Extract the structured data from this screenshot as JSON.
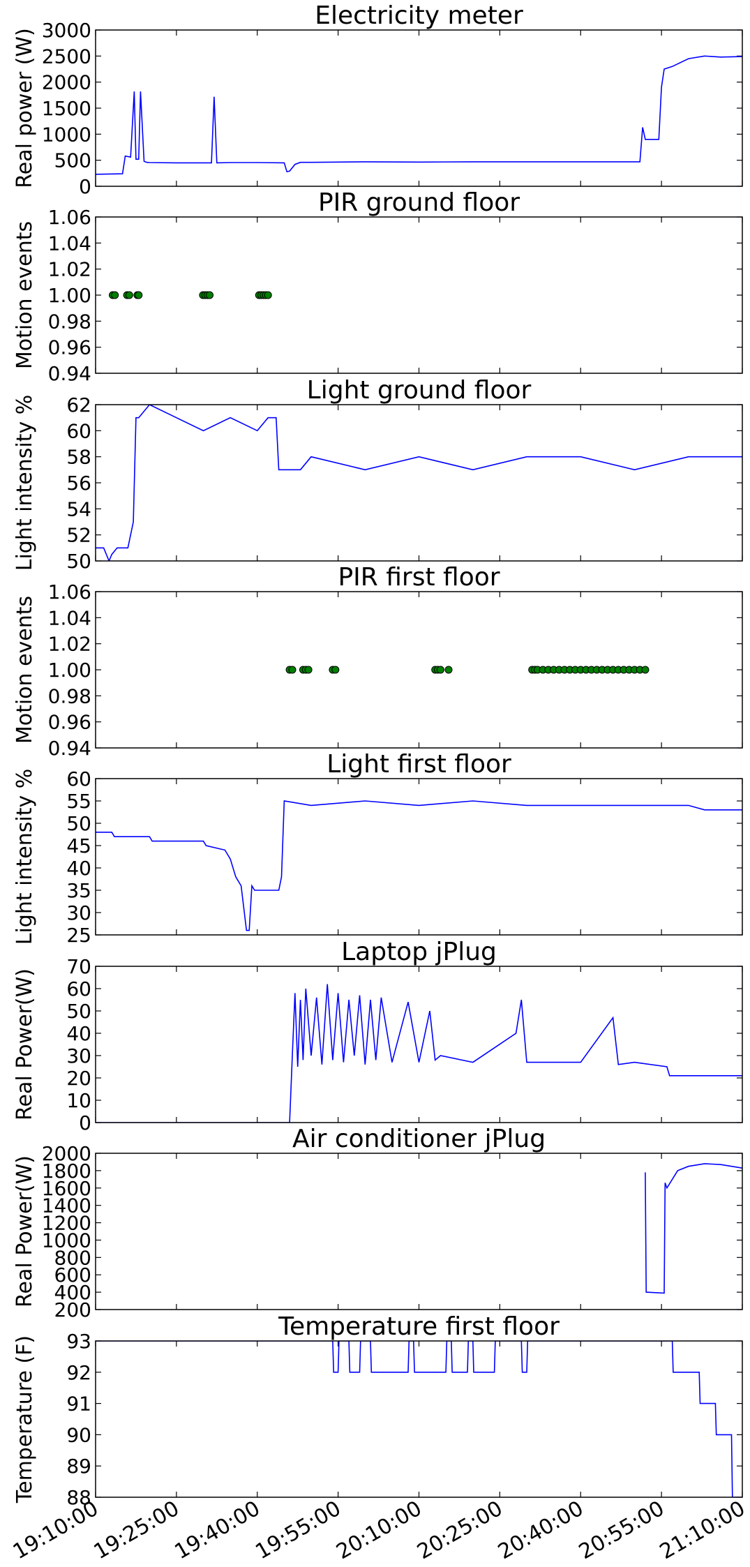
{
  "chart_data": [
    {
      "type": "line",
      "title": "Electricity meter",
      "ylabel": "Real power (W)",
      "xlim": [
        "19:10:00",
        "21:10:00"
      ],
      "ylim": [
        0,
        3000
      ],
      "yticks": [
        "0",
        "500",
        "1000",
        "1500",
        "2000",
        "2500",
        "3000"
      ],
      "color": "#0000ff",
      "grid": false,
      "series": [
        {
          "x": [
            "19:10:00",
            "19:15:00",
            "19:15:30",
            "19:16:30",
            "19:17:10",
            "19:17:30",
            "19:18:00",
            "19:18:20",
            "19:19:00",
            "19:19:30",
            "19:20:00",
            "19:25:00",
            "19:30:00",
            "19:31:30",
            "19:32:00",
            "19:32:30",
            "19:35:00",
            "19:40:00",
            "19:45:00",
            "19:45:30",
            "19:46:00",
            "19:47:00",
            "19:48:00",
            "19:50:00",
            "19:55:00",
            "20:00:00",
            "20:10:00",
            "20:20:00",
            "20:30:00",
            "20:40:00",
            "20:50:00",
            "20:51:00",
            "20:51:30",
            "20:52:00",
            "20:54:30",
            "20:55:00",
            "20:55:30",
            "20:57:00",
            "21:00:00",
            "21:03:00",
            "21:06:00",
            "21:10:00"
          ],
          "y": [
            230,
            240,
            580,
            560,
            1820,
            520,
            520,
            1820,
            480,
            460,
            455,
            450,
            450,
            450,
            1720,
            450,
            455,
            455,
            450,
            280,
            290,
            420,
            460,
            460,
            465,
            470,
            465,
            470,
            470,
            470,
            470,
            470,
            1130,
            900,
            900,
            1900,
            2250,
            2300,
            2450,
            2500,
            2480,
            2490
          ]
        }
      ]
    },
    {
      "type": "scatter",
      "title": "PIR ground floor",
      "ylabel": "Motion events",
      "xlim": [
        "19:10:00",
        "21:10:00"
      ],
      "ylim": [
        0.94,
        1.06
      ],
      "yticks": [
        "0.94",
        "0.96",
        "0.98",
        "1.00",
        "1.02",
        "1.04",
        "1.06"
      ],
      "color": "#008000",
      "grid": false,
      "series": [
        {
          "x": [
            "19:13:10",
            "19:13:35",
            "19:15:50",
            "19:16:15",
            "19:17:45",
            "19:18:00",
            "19:29:55",
            "19:30:20",
            "19:30:45",
            "19:31:10",
            "19:40:20",
            "19:40:45",
            "19:41:10",
            "19:41:35",
            "19:42:00"
          ],
          "y": [
            1,
            1,
            1,
            1,
            1,
            1,
            1,
            1,
            1,
            1,
            1,
            1,
            1,
            1,
            1
          ]
        }
      ]
    },
    {
      "type": "line",
      "title": "Light ground floor",
      "ylabel": "Light intensity %",
      "xlim": [
        "19:10:00",
        "21:10:00"
      ],
      "ylim": [
        50,
        62
      ],
      "yticks": [
        "50",
        "52",
        "54",
        "56",
        "58",
        "60",
        "62"
      ],
      "color": "#0000ff",
      "grid": false,
      "series": [
        {
          "x": [
            "19:10:00",
            "19:11:30",
            "19:12:30",
            "19:13:00",
            "19:14:00",
            "19:16:00",
            "19:17:00",
            "19:17:30",
            "19:18:00",
            "19:20:00",
            "19:25:00",
            "19:30:00",
            "19:35:00",
            "19:40:00",
            "19:42:00",
            "19:43:30",
            "19:44:00",
            "19:48:00",
            "19:50:00",
            "20:00:00",
            "20:10:00",
            "20:20:00",
            "20:30:00",
            "20:40:00",
            "20:50:00",
            "21:00:00",
            "21:10:00"
          ],
          "y": [
            51,
            51,
            50,
            50.5,
            51,
            51,
            53,
            61,
            61,
            62,
            61,
            60,
            61,
            60,
            61,
            61,
            57,
            57,
            58,
            57,
            58,
            57,
            58,
            58,
            57,
            58,
            58
          ]
        }
      ]
    },
    {
      "type": "scatter",
      "title": "PIR first floor",
      "ylabel": "Motion events",
      "xlim": [
        "19:10:00",
        "21:10:00"
      ],
      "ylim": [
        0.94,
        1.06
      ],
      "yticks": [
        "0.94",
        "0.96",
        "0.98",
        "1.00",
        "1.02",
        "1.04",
        "1.06"
      ],
      "color": "#008000",
      "grid": false,
      "series": [
        {
          "x": [
            "19:46:00",
            "19:46:30",
            "19:48:30",
            "19:49:00",
            "19:49:30",
            "19:54:00",
            "19:54:30",
            "20:13:00",
            "20:13:30",
            "20:14:00",
            "20:15:30",
            "20:31:00",
            "20:31:30",
            "20:32:00",
            "20:33:00",
            "20:34:00",
            "20:35:00",
            "20:36:00",
            "20:37:00",
            "20:38:00",
            "20:39:00",
            "20:40:00",
            "20:41:00",
            "20:42:00",
            "20:43:00",
            "20:44:00",
            "20:45:00",
            "20:46:00",
            "20:47:00",
            "20:48:00",
            "20:49:00",
            "20:50:00",
            "20:51:00",
            "20:52:00"
          ],
          "y": [
            1,
            1,
            1,
            1,
            1,
            1,
            1,
            1,
            1,
            1,
            1,
            1,
            1,
            1,
            1,
            1,
            1,
            1,
            1,
            1,
            1,
            1,
            1,
            1,
            1,
            1,
            1,
            1,
            1,
            1,
            1,
            1,
            1,
            1
          ]
        }
      ]
    },
    {
      "type": "line",
      "title": "Light first floor",
      "ylabel": "Light intensity %",
      "xlim": [
        "19:10:00",
        "21:10:00"
      ],
      "ylim": [
        25,
        60
      ],
      "yticks": [
        "25",
        "30",
        "35",
        "40",
        "45",
        "50",
        "55",
        "60"
      ],
      "color": "#0000ff",
      "grid": false,
      "series": [
        {
          "x": [
            "19:10:00",
            "19:13:00",
            "19:13:30",
            "19:20:00",
            "19:20:30",
            "19:30:00",
            "19:30:30",
            "19:34:00",
            "19:35:00",
            "19:36:00",
            "19:37:00",
            "19:38:00",
            "19:38:30",
            "19:39:00",
            "19:39:30",
            "19:40:00",
            "19:44:00",
            "19:44:30",
            "19:45:00",
            "19:50:00",
            "20:00:00",
            "20:10:00",
            "20:20:00",
            "20:30:00",
            "20:40:00",
            "20:50:00",
            "21:00:00",
            "21:03:00",
            "21:10:00"
          ],
          "y": [
            48,
            48,
            47,
            47,
            46,
            46,
            45,
            44,
            42,
            38,
            36,
            26,
            26,
            36,
            35,
            35,
            35,
            38,
            55,
            54,
            55,
            54,
            55,
            54,
            54,
            54,
            54,
            53,
            53
          ]
        }
      ]
    },
    {
      "type": "line",
      "title": "Laptop jPlug",
      "ylabel": "Real Power(W)",
      "xlim": [
        "19:10:00",
        "21:10:00"
      ],
      "ylim": [
        0,
        70
      ],
      "yticks": [
        "0",
        "10",
        "20",
        "30",
        "40",
        "50",
        "60",
        "70"
      ],
      "color": "#0000ff",
      "grid": false,
      "series": [
        {
          "x": [
            "19:10:00",
            "19:43:00",
            "19:46:00",
            "19:46:30",
            "19:47:00",
            "19:47:30",
            "19:48:00",
            "19:48:30",
            "19:49:00",
            "19:50:00",
            "19:51:00",
            "19:52:00",
            "19:53:00",
            "19:54:00",
            "19:55:00",
            "19:56:00",
            "19:57:00",
            "19:58:00",
            "19:59:00",
            "20:00:00",
            "20:01:00",
            "20:02:00",
            "20:03:00",
            "20:05:00",
            "20:08:00",
            "20:10:00",
            "20:12:00",
            "20:13:00",
            "20:14:00",
            "20:20:00",
            "20:28:00",
            "20:29:00",
            "20:30:00",
            "20:40:00",
            "20:46:00",
            "20:47:00",
            "20:50:00",
            "20:56:00",
            "20:56:30",
            "21:10:00"
          ],
          "y": [
            0,
            0,
            0,
            30,
            58,
            25,
            55,
            28,
            60,
            30,
            56,
            26,
            62,
            28,
            58,
            27,
            55,
            30,
            57,
            26,
            55,
            28,
            56,
            27,
            54,
            27,
            50,
            28,
            30,
            27,
            40,
            55,
            27,
            27,
            47,
            26,
            27,
            25,
            21,
            21
          ]
        }
      ]
    },
    {
      "type": "line",
      "title": "Air conditioner jPlug",
      "ylabel": "Real Power(W)",
      "xlim": [
        "19:10:00",
        "21:10:00"
      ],
      "ylim": [
        200,
        2000
      ],
      "yticks": [
        "200",
        "400",
        "600",
        "800",
        "1000",
        "1200",
        "1400",
        "1600",
        "1800",
        "2000"
      ],
      "color": "#0000ff",
      "grid": false,
      "series": [
        {
          "x": [
            "20:52:00",
            "20:52:10",
            "20:55:30",
            "20:55:40",
            "20:56:00",
            "20:58:00",
            "21:00:00",
            "21:03:00",
            "21:06:00",
            "21:10:00"
          ],
          "y": [
            1780,
            400,
            390,
            1660,
            1600,
            1800,
            1850,
            1880,
            1870,
            1830
          ]
        }
      ]
    },
    {
      "type": "line",
      "title": "Temperature first floor",
      "ylabel": "Temperature (F)",
      "xlim": [
        "19:10:00",
        "21:10:00"
      ],
      "ylim": [
        88,
        93
      ],
      "yticks": [
        "88",
        "89",
        "90",
        "91",
        "92",
        "93"
      ],
      "color": "#0000ff",
      "grid": false,
      "series": [
        {
          "x": [
            "19:10:00",
            "19:54:00",
            "19:54:10",
            "19:55:00",
            "19:55:10",
            "19:57:00",
            "19:57:10",
            "19:59:00",
            "19:59:10",
            "20:01:00",
            "20:01:10",
            "20:08:00",
            "20:08:10",
            "20:09:00",
            "20:09:10",
            "20:15:00",
            "20:15:10",
            "20:16:00",
            "20:16:10",
            "20:19:00",
            "20:19:10",
            "20:20:00",
            "20:20:10",
            "20:24:00",
            "20:24:10",
            "20:29:00",
            "20:29:10",
            "20:30:00",
            "20:30:10",
            "20:57:00",
            "20:57:10",
            "20:58:00",
            "20:58:10",
            "21:02:00",
            "21:02:10",
            "21:05:00",
            "21:05:10",
            "21:08:00",
            "21:08:10",
            "21:10:00"
          ],
          "y": [
            93,
            93,
            92,
            92,
            93,
            93,
            92,
            92,
            93,
            93,
            92,
            92,
            93,
            93,
            92,
            92,
            93,
            93,
            92,
            92,
            93,
            93,
            92,
            92,
            93,
            93,
            92,
            92,
            93,
            93,
            92,
            92,
            92,
            92,
            91,
            91,
            90,
            90,
            88,
            88
          ]
        }
      ]
    }
  ],
  "shared_xaxis": {
    "ticks": [
      "19:10:00",
      "19:25:00",
      "19:40:00",
      "19:55:00",
      "20:10:00",
      "20:25:00",
      "20:40:00",
      "20:55:00",
      "21:10:00"
    ]
  }
}
